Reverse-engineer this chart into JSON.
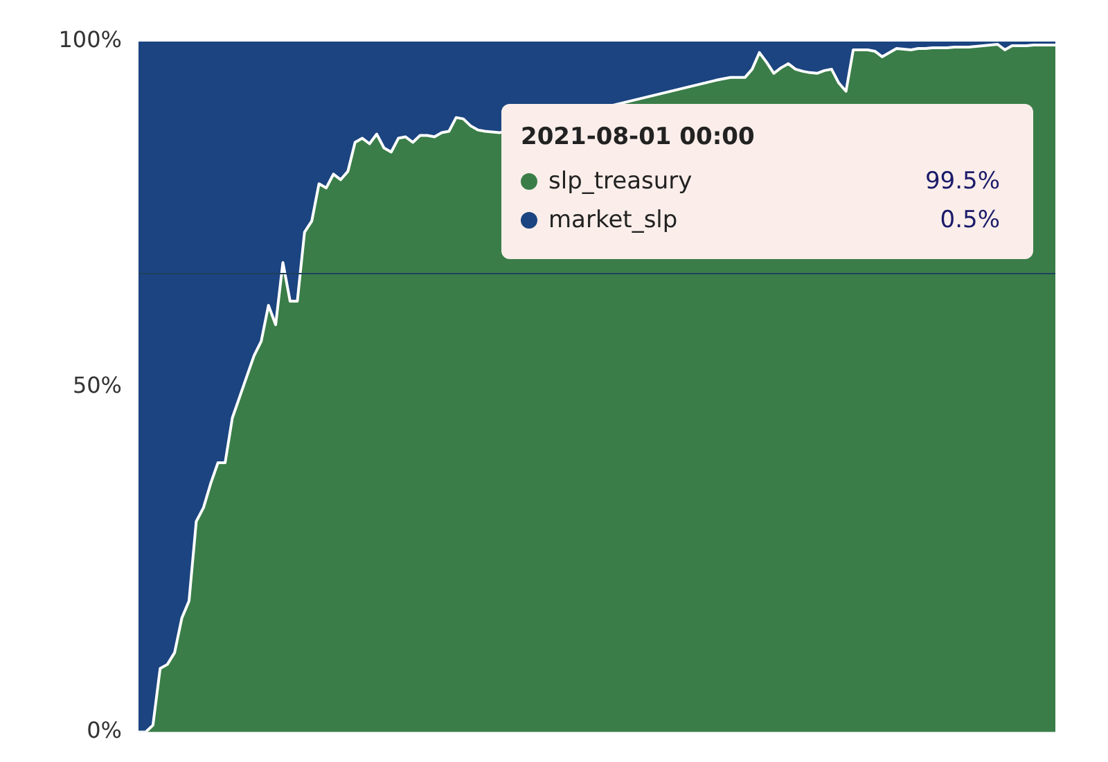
{
  "chart_data": {
    "type": "area",
    "stacked": true,
    "categories": [
      null,
      null,
      null,
      null,
      null,
      null,
      null,
      null,
      null,
      null,
      null,
      null,
      null,
      null,
      null,
      null,
      null,
      null,
      null,
      null,
      null,
      null,
      null,
      null,
      null,
      null,
      null,
      null,
      null,
      null,
      null,
      null,
      null,
      null,
      null,
      null,
      null,
      null,
      null,
      null,
      null,
      null,
      null,
      null,
      null,
      null,
      null,
      null,
      null,
      null,
      null,
      null,
      null,
      null,
      null,
      null,
      null,
      null,
      null,
      null,
      null,
      null,
      null,
      null,
      null,
      null,
      null,
      null,
      null,
      null,
      null,
      null,
      null,
      null,
      null,
      null,
      null,
      null,
      null,
      null,
      null,
      null,
      null,
      null,
      null,
      null,
      null,
      null,
      null,
      null,
      null,
      null,
      null,
      null,
      null,
      null,
      null,
      null,
      null,
      null,
      null,
      null,
      null,
      null,
      null,
      null,
      null,
      null,
      null,
      null,
      null,
      null,
      null,
      null,
      null,
      null,
      null,
      null,
      null,
      null,
      null,
      null,
      null,
      null,
      null,
      null,
      null,
      null
    ],
    "series": [
      {
        "name": "slp_treasury",
        "color": "#3a7d48",
        "values": [
          0,
          0,
          1,
          9.2,
          9.8,
          11.5,
          16.5,
          19,
          30.5,
          32.5,
          36,
          39,
          39,
          45.5,
          48.5,
          51.5,
          54.5,
          56.6,
          61.8,
          59,
          68,
          62.4,
          62.4,
          72.4,
          74,
          79.4,
          78.8,
          80.8,
          80,
          81.2,
          85.4,
          86,
          85.2,
          86.6,
          84.6,
          84,
          86,
          86.2,
          85.4,
          86.4,
          86.4,
          86.2,
          86.8,
          87,
          89,
          88.8,
          87.8,
          87.2,
          87,
          86.9,
          86.8,
          null,
          null,
          null,
          null,
          null,
          null,
          null,
          null,
          null,
          null,
          null,
          null,
          null,
          null,
          null,
          null,
          null,
          null,
          null,
          null,
          null,
          null,
          null,
          null,
          null,
          null,
          null,
          null,
          null,
          94.4,
          94.6,
          94.8,
          94.8,
          94.8,
          96,
          98.4,
          97,
          95.4,
          96.2,
          96.8,
          96,
          95.7,
          95.5,
          95.4,
          95.8,
          96,
          94,
          92.8,
          98.8,
          98.8,
          98.8,
          98.6,
          97.8,
          98.4,
          99,
          98.9,
          98.8,
          99,
          99,
          99.1,
          99.1,
          99.1,
          99.2,
          99.2,
          99.2,
          99.3,
          99.4,
          99.5,
          99.6,
          98.8,
          99.4,
          99.4,
          99.4,
          99.5,
          99.5,
          99.5,
          99.5
        ]
      },
      {
        "name": "market_slp",
        "color": "#1b4480",
        "values": [
          100,
          100,
          99,
          90.8,
          90.2,
          88.5,
          83.5,
          81,
          69.5,
          67.5,
          64,
          61,
          61,
          54.5,
          51.5,
          48.5,
          45.5,
          43.4,
          38.2,
          41,
          32,
          37.6,
          37.6,
          27.6,
          26,
          20.6,
          21.2,
          19.2,
          20,
          18.8,
          14.6,
          14,
          14.8,
          13.4,
          15.4,
          16,
          14,
          13.8,
          14.6,
          13.6,
          13.6,
          13.8,
          13.2,
          13,
          11,
          11.2,
          12.2,
          12.8,
          13,
          13.1,
          13.2,
          null,
          null,
          null,
          null,
          null,
          null,
          null,
          null,
          null,
          null,
          null,
          null,
          null,
          null,
          null,
          null,
          null,
          null,
          null,
          null,
          null,
          null,
          null,
          null,
          null,
          null,
          null,
          null,
          null,
          5.6,
          5.4,
          5.2,
          5.2,
          5.2,
          4,
          1.6,
          3,
          4.6,
          3.8,
          3.2,
          4,
          4.3,
          4.5,
          4.6,
          4.2,
          4,
          6,
          7.2,
          1.2,
          1.2,
          1.2,
          1.4,
          2.2,
          1.6,
          1,
          1.1,
          1.2,
          1,
          1,
          0.9,
          0.9,
          0.9,
          0.8,
          0.8,
          0.8,
          0.7,
          0.6,
          0.5,
          0.4,
          1.2,
          0.6,
          0.6,
          0.6,
          0.5,
          0.5,
          0.5,
          0.5
        ]
      }
    ],
    "ylim": [
      0,
      100
    ],
    "yticks": [
      {
        "value": 0,
        "label": "0%"
      },
      {
        "value": 50,
        "label": "50%"
      },
      {
        "value": 100,
        "label": "100%"
      }
    ],
    "tick_labels": "y",
    "grid": false,
    "legend": "top right",
    "ref_lines": [
      {
        "axis": "y",
        "value": 66.4,
        "color": "#1f3f5f"
      }
    ],
    "annotations": [
      "2021-08-01 00:00",
      "99.5%",
      "0.5%"
    ]
  }
}
